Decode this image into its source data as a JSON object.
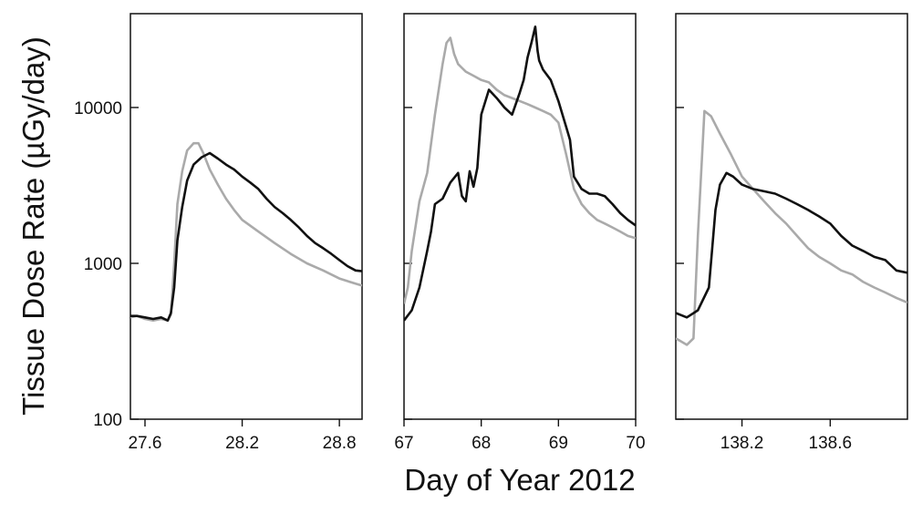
{
  "chart_data": {
    "type": "line",
    "ylabel": "Tissue Dose Rate (µGy/day)",
    "xlabel": "Day of Year 2012",
    "yscale": "log",
    "ylim": [
      100,
      40000
    ],
    "yticks": [
      100,
      1000,
      10000
    ],
    "ytick_labels": [
      "100",
      "1000",
      "10000"
    ],
    "colors": {
      "black_series": "#111111",
      "gray_series": "#aaaaaa"
    },
    "panels": [
      {
        "xlim": [
          27.51,
          28.94
        ],
        "xticks": [
          27.6,
          28.2,
          28.8
        ],
        "xtick_labels": [
          "27.6",
          "28.2",
          "28.8"
        ],
        "series": [
          {
            "color": "black",
            "x": [
              27.51,
              27.55,
              27.6,
              27.65,
              27.7,
              27.74,
              27.76,
              27.78,
              27.8,
              27.83,
              27.86,
              27.9,
              27.95,
              28.0,
              28.05,
              28.1,
              28.15,
              28.2,
              28.25,
              28.3,
              28.35,
              28.4,
              28.45,
              28.5,
              28.55,
              28.6,
              28.65,
              28.7,
              28.75,
              28.8,
              28.85,
              28.9,
              28.94
            ],
            "y": [
              460,
              460,
              450,
              440,
              450,
              430,
              480,
              700,
              1400,
              2300,
              3400,
              4300,
              4800,
              5100,
              4700,
              4300,
              4000,
              3600,
              3300,
              3000,
              2600,
              2300,
              2100,
              1900,
              1700,
              1500,
              1350,
              1250,
              1150,
              1050,
              960,
              900,
              890
            ]
          },
          {
            "color": "gray",
            "x": [
              27.51,
              27.55,
              27.6,
              27.65,
              27.7,
              27.74,
              27.76,
              27.78,
              27.8,
              27.83,
              27.86,
              27.9,
              27.93,
              27.96,
              28.0,
              28.05,
              28.1,
              28.15,
              28.2,
              28.3,
              28.4,
              28.5,
              28.6,
              28.7,
              28.8,
              28.9,
              28.94
            ],
            "y": [
              450,
              460,
              440,
              430,
              440,
              430,
              470,
              1000,
              2400,
              3900,
              5300,
              5900,
              5900,
              5100,
              4000,
              3200,
              2600,
              2200,
              1900,
              1600,
              1350,
              1150,
              1000,
              900,
              800,
              740,
              720
            ]
          }
        ]
      },
      {
        "xlim": [
          67,
          70
        ],
        "xticks": [
          67,
          68,
          69,
          70
        ],
        "xtick_labels": [
          "67",
          "68",
          "69",
          "70"
        ],
        "series": [
          {
            "color": "black",
            "x": [
              67.0,
              67.1,
              67.2,
              67.3,
              67.35,
              67.4,
              67.5,
              67.6,
              67.7,
              67.75,
              67.8,
              67.85,
              67.9,
              67.95,
              68.0,
              68.1,
              68.2,
              68.3,
              68.4,
              68.5,
              68.55,
              68.6,
              68.65,
              68.7,
              68.73,
              68.75,
              68.8,
              68.9,
              69.0,
              69.1,
              69.15,
              69.2,
              69.3,
              69.4,
              69.5,
              69.6,
              69.7,
              69.8,
              69.9,
              70.0
            ],
            "y": [
              430,
              500,
              700,
              1200,
              1600,
              2400,
              2600,
              3300,
              3800,
              2700,
              2500,
              3900,
              3100,
              4100,
              9000,
              13000,
              11500,
              10000,
              9000,
              12500,
              15000,
              21000,
              26000,
              33000,
              23000,
              20000,
              17500,
              15000,
              11000,
              7500,
              6200,
              3600,
              3000,
              2800,
              2800,
              2700,
              2400,
              2100,
              1900,
              1750
            ]
          },
          {
            "color": "gray",
            "x": [
              67.0,
              67.05,
              67.1,
              67.2,
              67.3,
              67.4,
              67.5,
              67.55,
              67.6,
              67.65,
              67.7,
              67.8,
              67.9,
              68.0,
              68.1,
              68.2,
              68.3,
              68.4,
              68.5,
              68.6,
              68.7,
              68.8,
              68.9,
              69.0,
              69.1,
              69.2,
              69.3,
              69.4,
              69.5,
              69.6,
              69.7,
              69.8,
              69.9,
              70.0
            ],
            "y": [
              550,
              700,
              1200,
              2500,
              3800,
              9000,
              19000,
              26000,
              28000,
              22000,
              19000,
              17000,
              16000,
              15000,
              14500,
              13000,
              12000,
              11500,
              11000,
              10500,
              10000,
              9500,
              9000,
              8000,
              5000,
              3000,
              2400,
              2100,
              1900,
              1800,
              1700,
              1600,
              1500,
              1450
            ]
          }
        ]
      },
      {
        "xlim": [
          137.9,
          138.95
        ],
        "xticks": [
          138.2,
          138.6
        ],
        "xtick_labels": [
          "138.2",
          "138.6"
        ],
        "series": [
          {
            "color": "black",
            "x": [
              137.9,
              137.95,
              138.0,
              138.05,
              138.08,
              138.1,
              138.13,
              138.16,
              138.2,
              138.25,
              138.3,
              138.35,
              138.4,
              138.45,
              138.5,
              138.55,
              138.6,
              138.65,
              138.7,
              138.75,
              138.8,
              138.85,
              138.9,
              138.95
            ],
            "y": [
              480,
              450,
              500,
              700,
              2200,
              3200,
              3800,
              3600,
              3200,
              3000,
              2900,
              2800,
              2600,
              2400,
              2200,
              2000,
              1800,
              1500,
              1300,
              1200,
              1100,
              1050,
              900,
              870
            ]
          },
          {
            "color": "gray",
            "x": [
              137.9,
              137.95,
              137.98,
              138.0,
              138.03,
              138.06,
              138.1,
              138.15,
              138.2,
              138.25,
              138.3,
              138.35,
              138.4,
              138.45,
              138.5,
              138.55,
              138.6,
              138.65,
              138.7,
              138.75,
              138.8,
              138.85,
              138.9,
              138.95
            ],
            "y": [
              330,
              300,
              330,
              1500,
              9500,
              8800,
              6800,
              5000,
              3600,
              3000,
              2500,
              2100,
              1800,
              1500,
              1250,
              1100,
              1000,
              900,
              850,
              760,
              700,
              650,
              600,
              560
            ]
          }
        ]
      }
    ]
  }
}
